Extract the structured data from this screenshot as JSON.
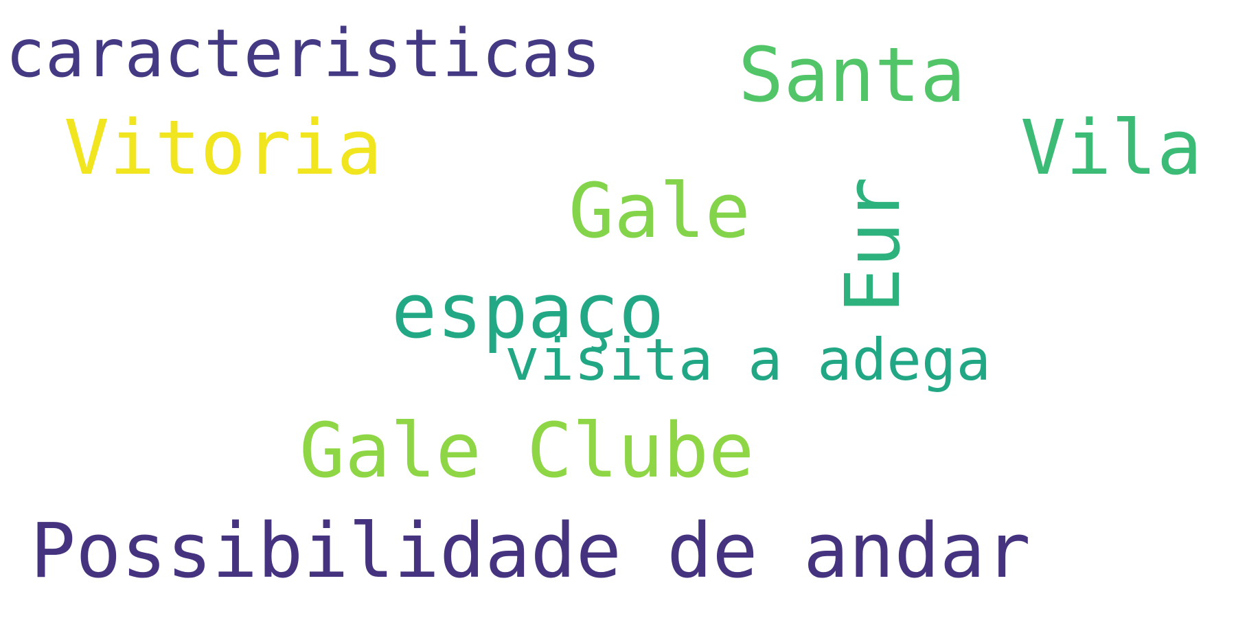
{
  "cloud": {
    "background": "#ffffff",
    "words": [
      {
        "text": "caracteristicas",
        "color": "#443983"
      },
      {
        "text": "Santa",
        "color": "#52c569"
      },
      {
        "text": "Vitoria",
        "color": "#f0e51e"
      },
      {
        "text": "Vila",
        "color": "#3bbb75"
      },
      {
        "text": "Gale",
        "color": "#84d44b"
      },
      {
        "text": "Eur",
        "color": "#2db27d"
      },
      {
        "text": "espaço",
        "color": "#22a884"
      },
      {
        "text": "visita a adega",
        "color": "#22a785"
      },
      {
        "text": "Gale Clube",
        "color": "#8ed645"
      },
      {
        "text": "Possibilidade de andar",
        "color": "#46337f"
      }
    ]
  }
}
